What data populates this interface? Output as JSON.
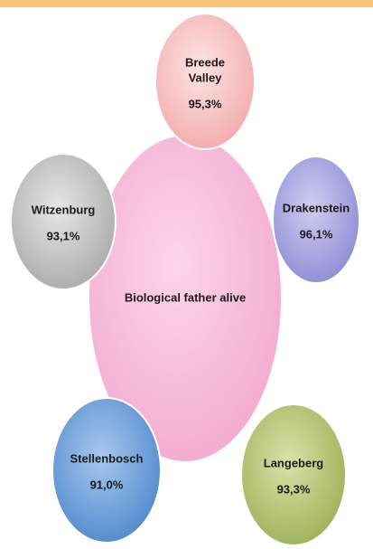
{
  "center": {
    "label": "Biological father alive"
  },
  "nodes": [
    {
      "label": [
        "Breede",
        "Valley"
      ],
      "value": "95,3%"
    },
    {
      "label": [
        "Drakenstein"
      ],
      "value": "96,1%"
    },
    {
      "label": [
        "Langeberg"
      ],
      "value": "93,3%"
    },
    {
      "label": [
        "Stellenbosch"
      ],
      "value": "91,0%"
    },
    {
      "label": [
        "Witzenburg"
      ],
      "value": "93,1%"
    }
  ]
}
